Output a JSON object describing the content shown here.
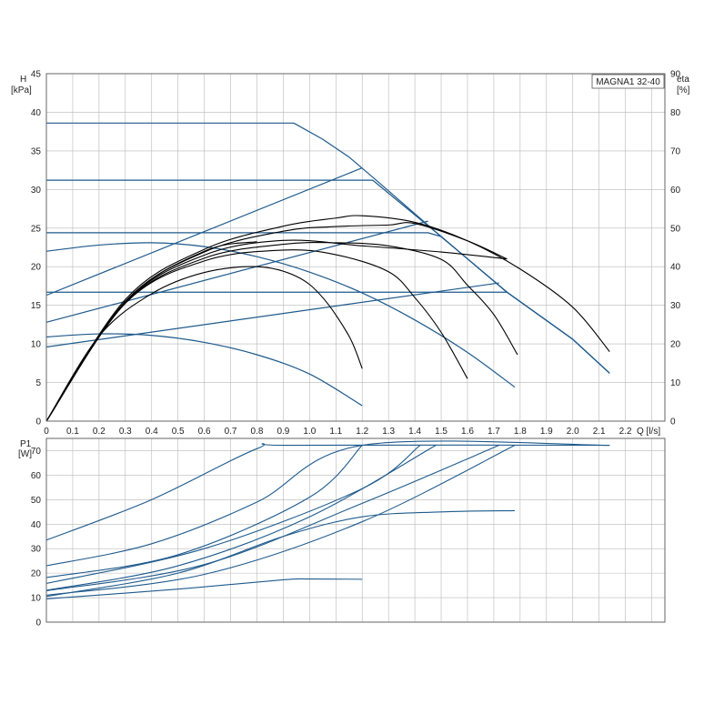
{
  "colors": {
    "blue": "#1e5a8c",
    "black": "#000000",
    "grid": "#b8b8b8",
    "axis": "#666666"
  },
  "chart_data": [
    {
      "id": "head",
      "type": "line",
      "title": "MAGNA1 32-40",
      "xlabel": "Q [l/s]",
      "ylabel_left": {
        "line1": "H",
        "line2": "[kPa]"
      },
      "ylabel_right": {
        "line1": "eta",
        "line2": "[%]"
      },
      "xlim": [
        0,
        2.35
      ],
      "ylim_left": [
        0,
        45
      ],
      "ylim_right": [
        0,
        90
      ],
      "xticks": [
        "0",
        "0.1",
        "0.2",
        "0.3",
        "0.4",
        "0.5",
        "0.6",
        "0.7",
        "0.8",
        "0.9",
        "1.0",
        "1.1",
        "1.2",
        "1.3",
        "1.4",
        "1.5",
        "1.6",
        "1.7",
        "1.8",
        "1.9",
        "2.0",
        "2.1",
        "2.2"
      ],
      "yticks_left": [
        "0",
        "5",
        "10",
        "15",
        "20",
        "25",
        "30",
        "35",
        "40",
        "45"
      ],
      "yticks_right": [
        "0",
        "10",
        "20",
        "30",
        "40",
        "50",
        "60",
        "70",
        "80",
        "90"
      ],
      "grid": true,
      "series": [
        {
          "kind": "head",
          "color": "blue",
          "points": [
            [
              0,
              38.6
            ],
            [
              0.94,
              38.6
            ],
            [
              1.05,
              36.5
            ],
            [
              1.15,
              34.2
            ],
            [
              1.25,
              31.3
            ],
            [
              1.5,
              23.9
            ],
            [
              1.75,
              16.7
            ],
            [
              2.0,
              10.6
            ],
            [
              2.14,
              6.2
            ]
          ]
        },
        {
          "kind": "head",
          "color": "blue",
          "points": [
            [
              0,
              31.2
            ],
            [
              1.24,
              31.2
            ],
            [
              1.5,
              23.9
            ],
            [
              1.75,
              16.7
            ],
            [
              2.0,
              10.6
            ],
            [
              2.14,
              6.2
            ]
          ]
        },
        {
          "kind": "head",
          "color": "blue",
          "points": [
            [
              0,
              24.4
            ],
            [
              1.45,
              24.4
            ],
            [
              1.5,
              23.9
            ],
            [
              1.75,
              16.7
            ],
            [
              2.0,
              10.6
            ],
            [
              2.14,
              6.2
            ]
          ]
        },
        {
          "kind": "head",
          "color": "blue",
          "points": [
            [
              0,
              16.7
            ],
            [
              1.75,
              16.7
            ]
          ]
        },
        {
          "kind": "head",
          "color": "blue",
          "points": [
            [
              0,
              22.0
            ],
            [
              0.2,
              22.8
            ],
            [
              0.4,
              23.1
            ],
            [
              0.6,
              22.6
            ],
            [
              0.8,
              21.3
            ],
            [
              1.0,
              19.3
            ],
            [
              1.2,
              16.6
            ],
            [
              1.4,
              13.1
            ],
            [
              1.6,
              8.9
            ],
            [
              1.78,
              4.4
            ]
          ]
        },
        {
          "kind": "head",
          "color": "blue",
          "points": [
            [
              0,
              10.9
            ],
            [
              0.2,
              11.3
            ],
            [
              0.4,
              11.1
            ],
            [
              0.6,
              10.2
            ],
            [
              0.8,
              8.6
            ],
            [
              1.0,
              6.1
            ],
            [
              1.2,
              2.0
            ]
          ]
        },
        {
          "kind": "curve",
          "color": "blue",
          "points": [
            [
              0,
              16.3
            ],
            [
              1.2,
              32.8
            ]
          ]
        },
        {
          "kind": "curve",
          "color": "blue",
          "points": [
            [
              0,
              12.8
            ],
            [
              1.45,
              25.9
            ]
          ]
        },
        {
          "kind": "curve",
          "color": "blue",
          "points": [
            [
              0,
              9.6
            ],
            [
              1.72,
              17.9
            ]
          ]
        },
        {
          "kind": "eta",
          "color": "black",
          "points": [
            [
              0,
              0
            ],
            [
              0.3,
              31.5
            ],
            [
              0.6,
              44.5
            ],
            [
              0.9,
              50.5
            ],
            [
              1.1,
              52.6
            ],
            [
              1.2,
              53.2
            ],
            [
              1.4,
              51.5
            ],
            [
              1.6,
              46.7
            ],
            [
              1.8,
              39.4
            ],
            [
              2.0,
              29.5
            ],
            [
              2.14,
              18.0
            ]
          ]
        },
        {
          "kind": "eta",
          "color": "black",
          "points": [
            [
              0,
              0
            ],
            [
              0.3,
              31.0
            ],
            [
              0.6,
              43.8
            ],
            [
              0.9,
              49.2
            ],
            [
              1.1,
              50.4
            ],
            [
              1.3,
              50.8
            ],
            [
              1.4,
              51.2
            ],
            [
              1.6,
              46.7
            ],
            [
              1.75,
              42.0
            ]
          ]
        },
        {
          "kind": "eta",
          "color": "black",
          "points": [
            [
              0,
              0
            ],
            [
              0.3,
              30.8
            ],
            [
              0.6,
              43.0
            ],
            [
              0.9,
              46.8
            ],
            [
              1.2,
              45.4
            ],
            [
              1.5,
              43.8
            ],
            [
              1.75,
              42.0
            ]
          ]
        },
        {
          "kind": "eta",
          "color": "black",
          "points": [
            [
              0,
              0
            ],
            [
              0.3,
              30.6
            ],
            [
              0.6,
              42.2
            ],
            [
              0.9,
              45.8
            ],
            [
              1.1,
              46.2
            ],
            [
              1.3,
              45.4
            ],
            [
              1.5,
              41.9
            ],
            [
              1.6,
              35.2
            ],
            [
              1.7,
              27.6
            ],
            [
              1.79,
              17.2
            ]
          ]
        },
        {
          "kind": "eta",
          "color": "black",
          "points": [
            [
              0,
              0
            ],
            [
              0.3,
              30.5
            ],
            [
              0.6,
              41.5
            ],
            [
              0.9,
              44.3
            ],
            [
              1.1,
              43.1
            ],
            [
              1.3,
              38.7
            ],
            [
              1.4,
              32.0
            ],
            [
              1.5,
              23.0
            ],
            [
              1.6,
              11.0
            ]
          ]
        },
        {
          "kind": "eta",
          "color": "black",
          "points": [
            [
              0,
              0
            ],
            [
              0.2,
              22.0
            ],
            [
              0.4,
              33.0
            ],
            [
              0.6,
              38.5
            ],
            [
              0.8,
              40.0
            ],
            [
              0.95,
              37.5
            ],
            [
              1.05,
              32.0
            ],
            [
              1.15,
              22.0
            ],
            [
              1.2,
              13.6
            ]
          ]
        },
        {
          "kind": "eta",
          "color": "black",
          "points": [
            [
              0,
              0
            ],
            [
              0.3,
              31.0
            ],
            [
              0.6,
              44.0
            ],
            [
              0.8,
              46.5
            ]
          ]
        }
      ]
    },
    {
      "id": "power",
      "type": "line",
      "ylabel": {
        "line1": "P1",
        "line2": "[W]"
      },
      "xlim": [
        0,
        2.35
      ],
      "ylim": [
        0,
        75
      ],
      "yticks": [
        "0",
        "10",
        "20",
        "30",
        "40",
        "50",
        "60",
        "70"
      ],
      "grid": true,
      "series": [
        {
          "color": "blue",
          "points": [
            [
              0,
              33.5
            ],
            [
              0.4,
              50
            ],
            [
              0.8,
              70.8
            ],
            [
              0.94,
              72.2
            ],
            [
              2.14,
              72.2
            ]
          ]
        },
        {
          "color": "blue",
          "points": [
            [
              0,
              23.0
            ],
            [
              0.4,
              32.0
            ],
            [
              0.8,
              49.0
            ],
            [
              1.2,
              72.2
            ],
            [
              2.14,
              72.2
            ]
          ]
        },
        {
          "color": "blue",
          "points": [
            [
              0,
              18.2
            ],
            [
              0.5,
              27.5
            ],
            [
              1.0,
              51.0
            ],
            [
              1.2,
              72.2
            ]
          ]
        },
        {
          "color": "blue",
          "points": [
            [
              0,
              15.8
            ],
            [
              0.6,
              30.0
            ],
            [
              1.2,
              54.5
            ],
            [
              1.42,
              72.2
            ]
          ]
        },
        {
          "color": "blue",
          "points": [
            [
              0,
              13.0
            ],
            [
              0.5,
              23.0
            ],
            [
              1.0,
              43.0
            ],
            [
              1.48,
              72.2
            ]
          ]
        },
        {
          "color": "blue",
          "points": [
            [
              0,
              12.8
            ],
            [
              0.6,
              23.5
            ],
            [
              1.2,
              48.5
            ],
            [
              1.72,
              72.2
            ]
          ]
        },
        {
          "color": "blue",
          "points": [
            [
              0,
              11.0
            ],
            [
              0.6,
              19.5
            ],
            [
              1.2,
              41.0
            ],
            [
              1.78,
              72.2
            ]
          ]
        },
        {
          "color": "blue",
          "points": [
            [
              0,
              10.5
            ],
            [
              0.5,
              20.0
            ],
            [
              0.9,
              35.0
            ],
            [
              1.2,
              43.0
            ],
            [
              1.5,
              45.0
            ],
            [
              1.78,
              45.5
            ]
          ]
        },
        {
          "color": "blue",
          "points": [
            [
              0,
              9.5
            ],
            [
              0.5,
              13.5
            ],
            [
              0.9,
              17.3
            ],
            [
              1.0,
              17.6
            ],
            [
              1.2,
              17.5
            ]
          ]
        }
      ]
    }
  ]
}
